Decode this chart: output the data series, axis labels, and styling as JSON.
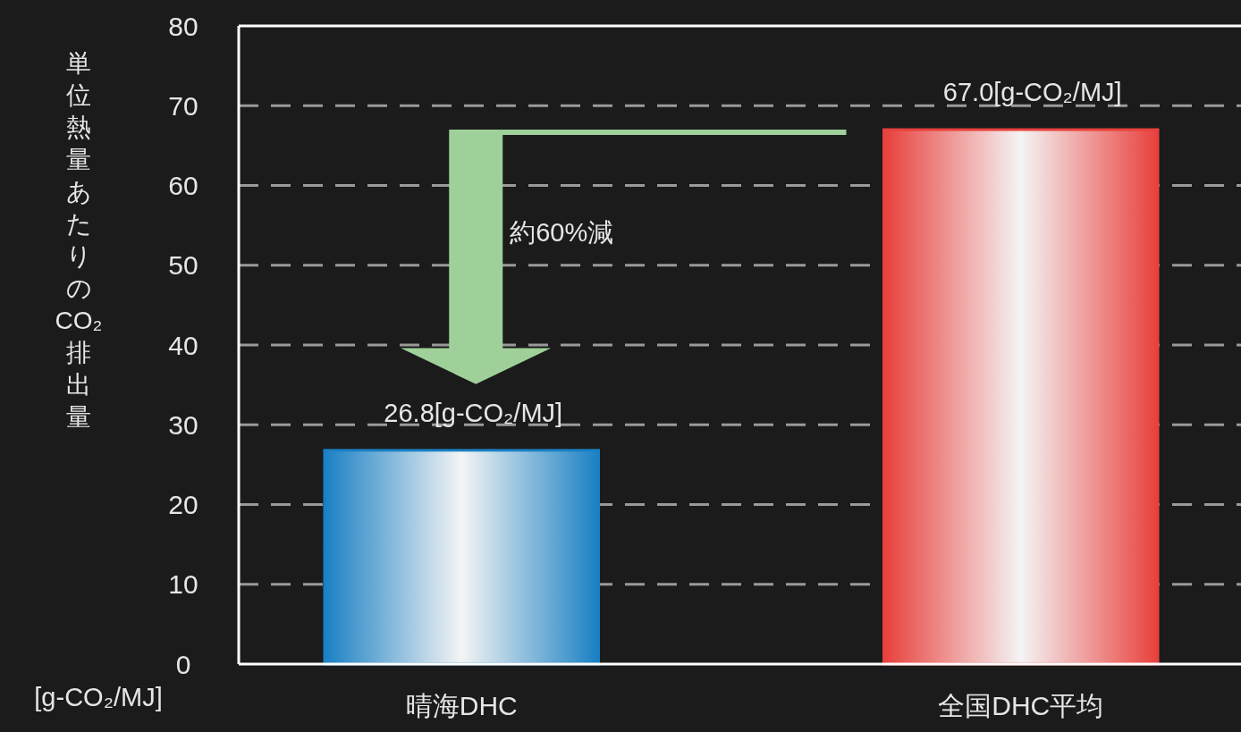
{
  "chart_data": {
    "type": "bar",
    "ylabel": "単位熱量あたりのCO₂排出量",
    "categories": [
      "晴海DHC",
      "全国DHC平均"
    ],
    "values": [
      26.8,
      67.0
    ],
    "colors": [
      "#1a80c4",
      "#e8403c"
    ],
    "value_labels": [
      "26.8[g-CO₂/MJ]",
      "67.0[g-CO₂/MJ]"
    ],
    "ylim": [
      0,
      80
    ],
    "yticks": [
      0,
      10,
      20,
      30,
      40,
      50,
      60,
      70,
      80
    ],
    "grid": "y",
    "annotations": [
      "約60%減",
      "[g-CO₂/MJ]"
    ]
  }
}
